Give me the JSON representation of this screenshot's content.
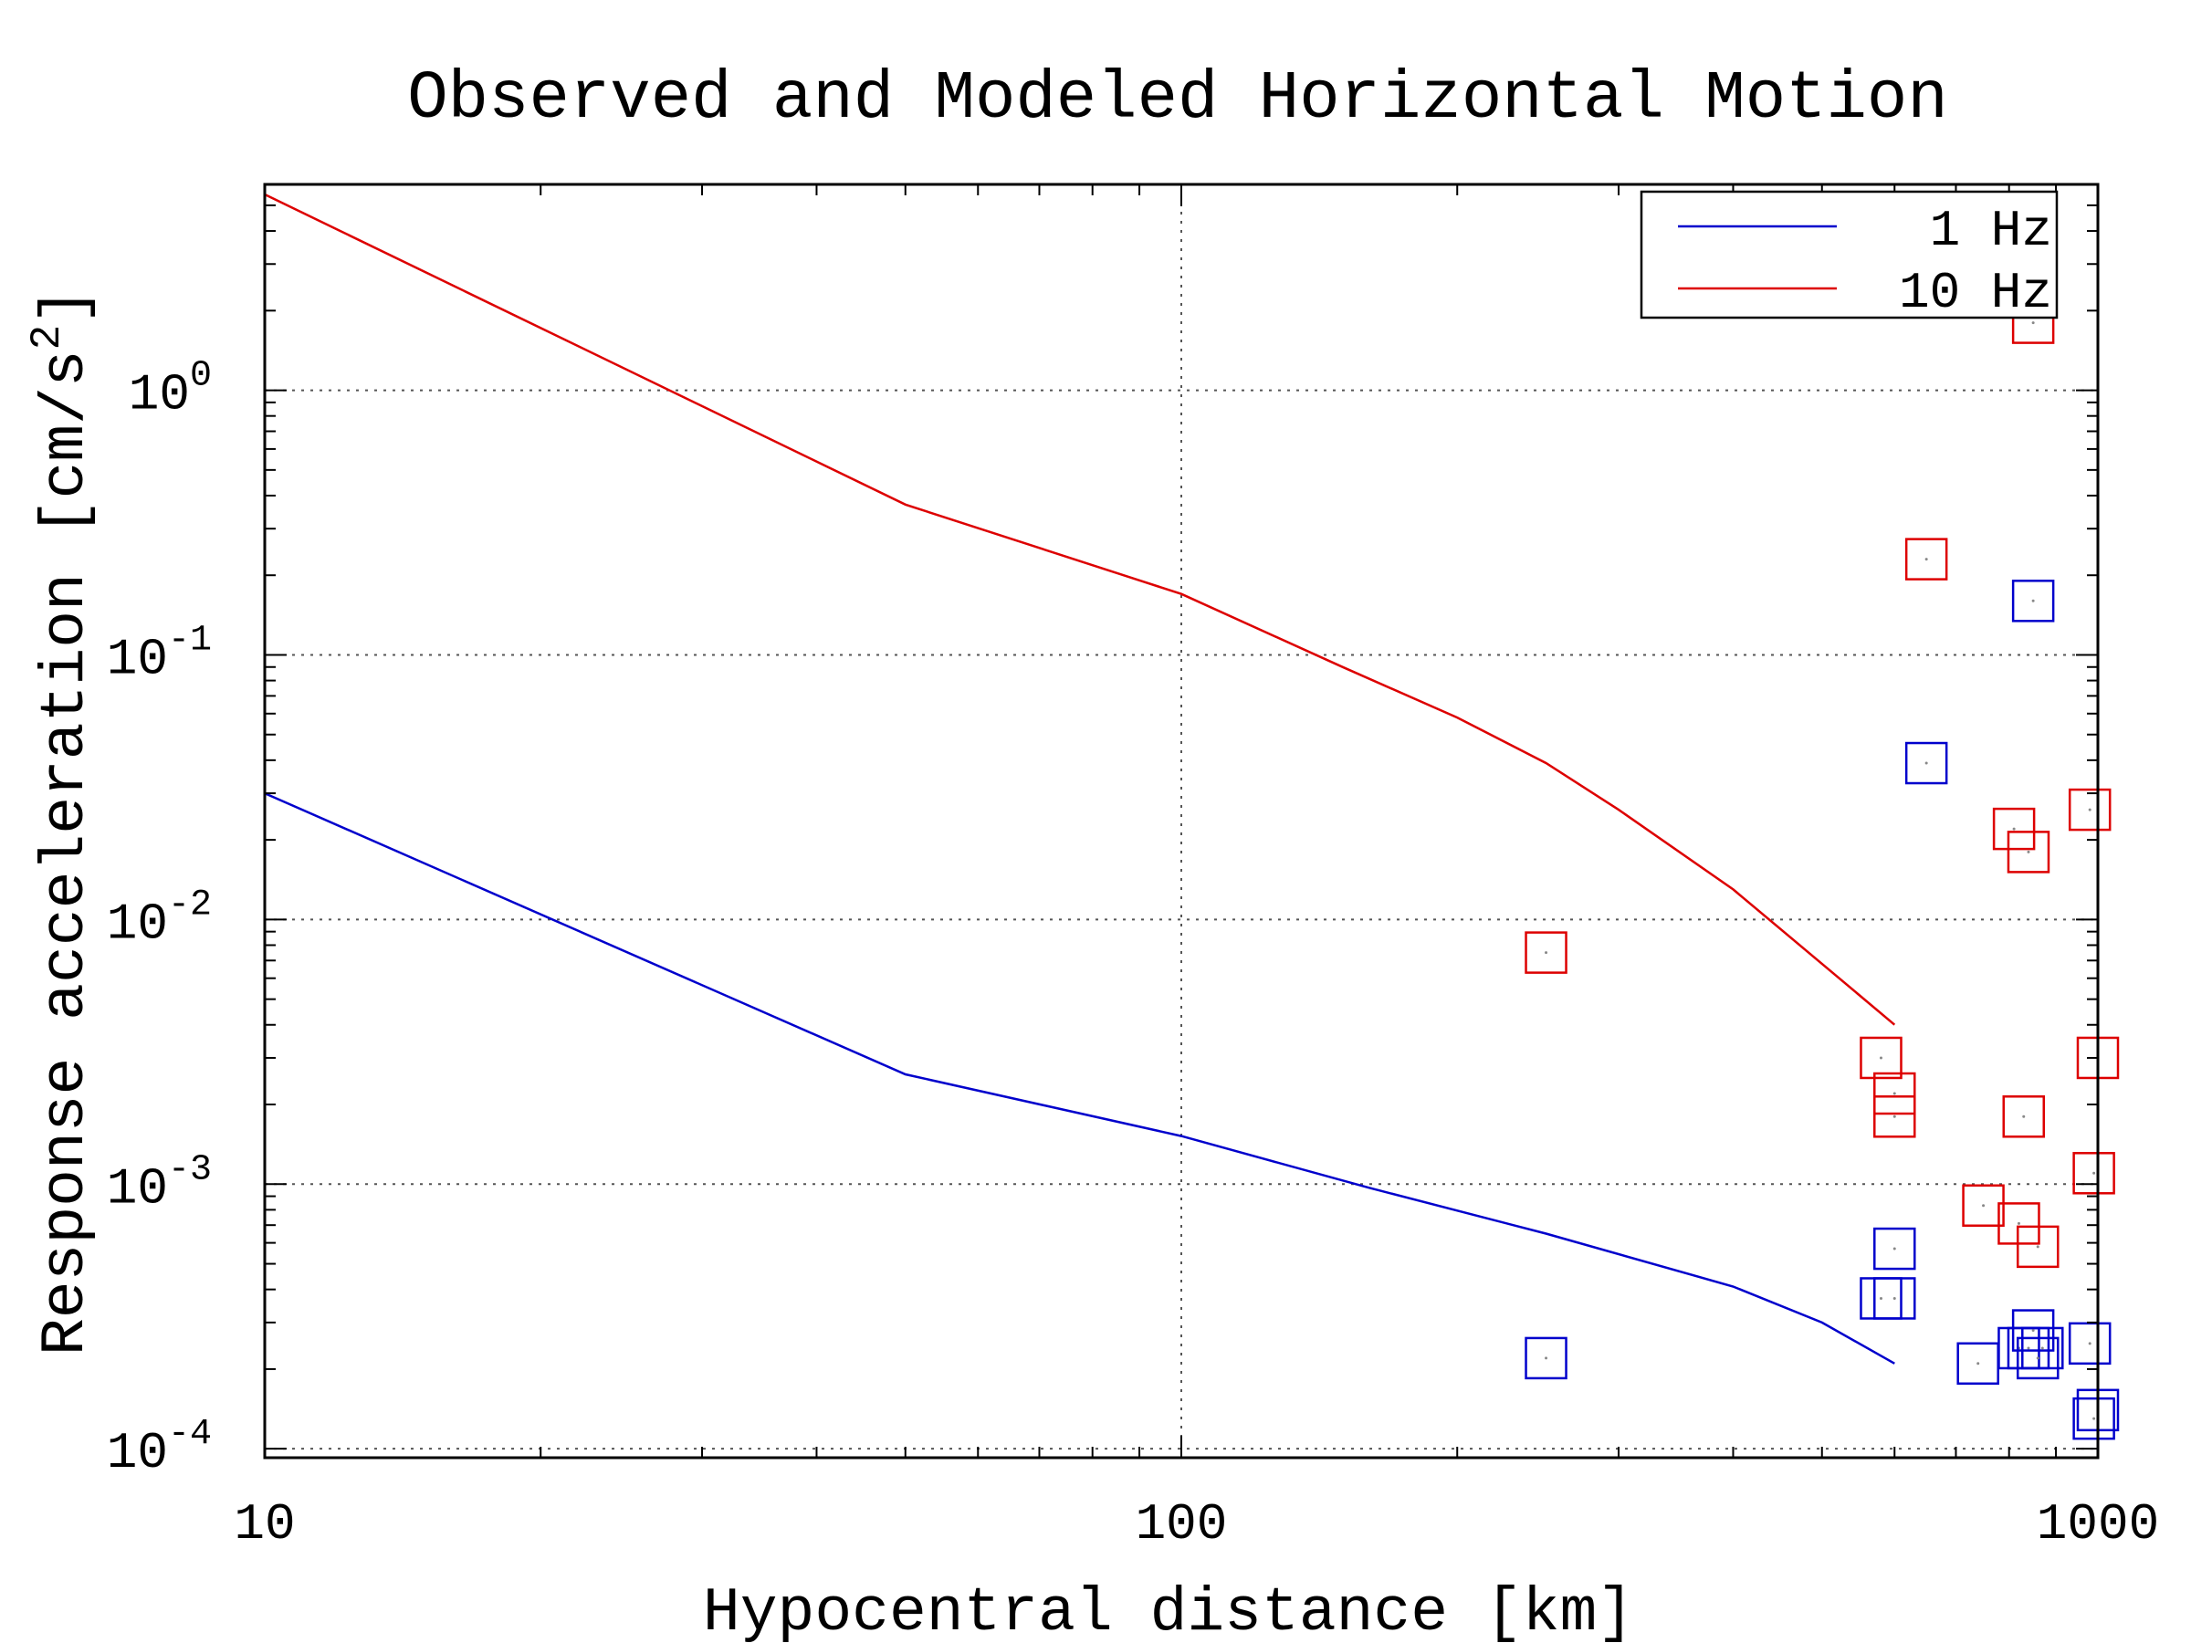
{
  "chart_data": {
    "type": "scatter",
    "title": "Observed and Modeled Horizontal Motion",
    "xlabel": "Hypocentral distance [km]",
    "ylabel": "Response acceleration [cm/s²]",
    "ylabel_main": "Response acceleration [cm/s",
    "ylabel_sup": "2",
    "ylabel_end": "]",
    "xscale": "log",
    "yscale": "log",
    "xlim": [
      10,
      1000
    ],
    "ylim": [
      9.25e-05,
      6.0
    ],
    "grid": true,
    "legend_position": "top-right",
    "x_ticks": [
      {
        "value": 10,
        "label": "10"
      },
      {
        "value": 100,
        "label": "100"
      },
      {
        "value": 1000,
        "label": "1000"
      }
    ],
    "y_ticks": [
      {
        "value": 1,
        "base": "10",
        "exp": "0"
      },
      {
        "value": 0.1,
        "base": "10",
        "exp": "-1"
      },
      {
        "value": 0.01,
        "base": "10",
        "exp": "-2"
      },
      {
        "value": 0.001,
        "base": "10",
        "exp": "-3"
      },
      {
        "value": 0.0001,
        "base": "10",
        "exp": "-4"
      }
    ],
    "series": [
      {
        "name": "1 Hz",
        "color": "#0000cc",
        "model_x": [
          10,
          50,
          100,
          160,
          250,
          400,
          500,
          600
        ],
        "model_y": [
          0.03,
          0.0026,
          0.00152,
          0.00097,
          0.00065,
          0.00041,
          0.0003,
          0.00021
        ],
        "observed_x": [
          250,
          580,
          600,
          600,
          650,
          740,
          820,
          840,
          850,
          850,
          860,
          870,
          980,
          990,
          1000
        ],
        "observed_y": [
          0.00022,
          0.00037,
          0.00037,
          0.00057,
          0.039,
          0.00021,
          0.00024,
          0.00024,
          0.00028,
          0.16,
          0.00022,
          0.00024,
          0.00025,
          0.00013,
          0.00014
        ]
      },
      {
        "name": "10 Hz",
        "color": "#dd0000",
        "model_x": [
          10,
          50,
          100,
          150,
          200,
          250,
          300,
          400,
          500,
          600
        ],
        "model_y": [
          5.5,
          0.37,
          0.17,
          0.09,
          0.058,
          0.039,
          0.026,
          0.013,
          0.0068,
          0.004
        ],
        "observed_x": [
          250,
          580,
          600,
          600,
          650,
          750,
          810,
          820,
          830,
          840,
          850,
          860,
          980,
          990,
          1000
        ],
        "observed_y": [
          0.0075,
          0.003,
          0.0022,
          0.0018,
          0.23,
          0.00083,
          0.022,
          0.00071,
          0.0018,
          0.018,
          1.8,
          0.00058,
          0.026,
          0.0011,
          0.003
        ]
      }
    ]
  }
}
